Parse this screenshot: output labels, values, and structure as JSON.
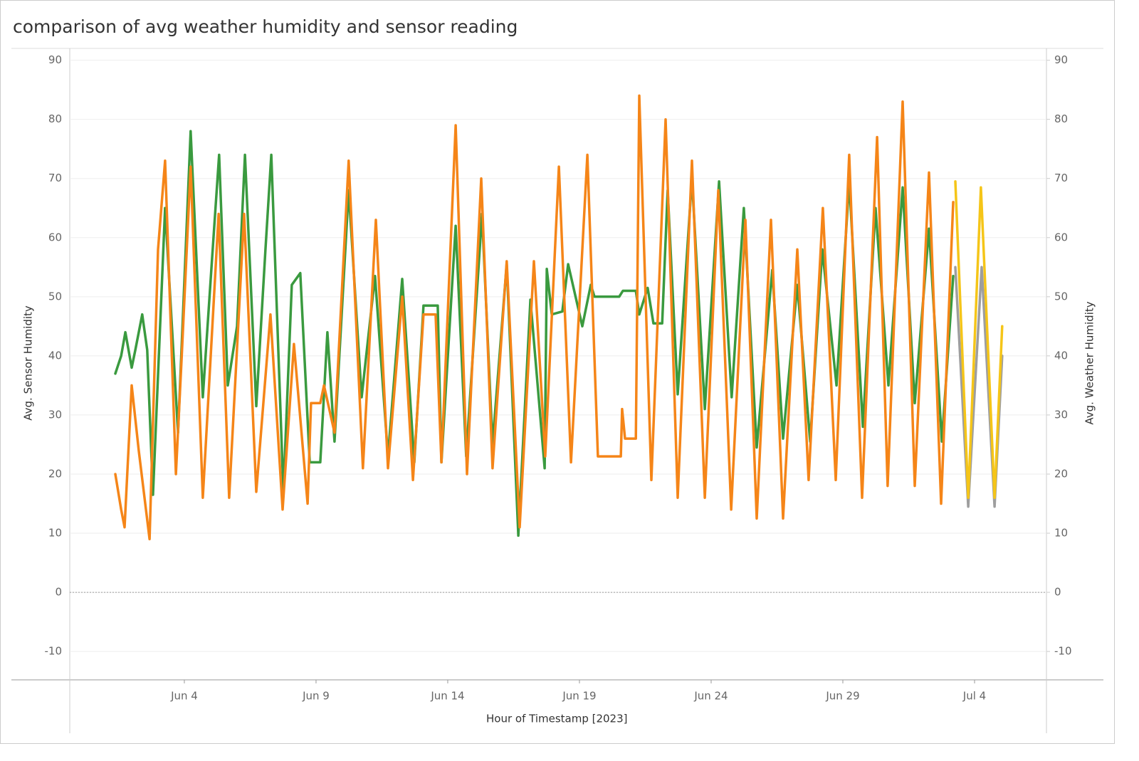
{
  "chart_data": {
    "type": "line",
    "title": "comparison of avg weather humidity and sensor reading",
    "x_label": "Hour of Timestamp [2023]",
    "y_label": "Avg. Sensor Humidity",
    "y2_label": "Avg. Weather Humidity",
    "xlim": [
      -0.35,
      36.73
    ],
    "xticks": [
      {
        "value": 4,
        "label": "Jun 4"
      },
      {
        "value": 9,
        "label": "Jun 9"
      },
      {
        "value": 14,
        "label": "Jun 14"
      },
      {
        "value": 19,
        "label": "Jun 19"
      },
      {
        "value": 24,
        "label": "Jun 24"
      },
      {
        "value": 29,
        "label": "Jun 29"
      },
      {
        "value": 34,
        "label": "Jul 4"
      }
    ],
    "ylim": [
      -14.8,
      92
    ],
    "yticks": [
      -10,
      0,
      10,
      20,
      30,
      40,
      50,
      60,
      70,
      80,
      90
    ],
    "y2lim": [
      -14.8,
      92
    ],
    "y2ticks": [
      -10,
      0,
      10,
      20,
      30,
      40,
      50,
      60,
      70,
      80,
      90
    ],
    "grid": true,
    "zero_line": true,
    "series": [
      {
        "color": "#3a9a3f",
        "axis": "y",
        "x": [
          1.38,
          1.6,
          1.76,
          2.0,
          2.14,
          2.4,
          2.59,
          2.81,
          3.27,
          3.76,
          4.24,
          4.7,
          5.03,
          5.32,
          5.65,
          6.0,
          6.3,
          6.73,
          7.08,
          7.3,
          7.76,
          8.08,
          8.4,
          8.76,
          9.16,
          9.43,
          9.7,
          10.24,
          10.73,
          11.24,
          11.73,
          12.27,
          12.73,
          13.08,
          13.62,
          13.76,
          14.3,
          14.7,
          15.3,
          15.7,
          16.24,
          16.68,
          17.14,
          17.68,
          17.76,
          17.95,
          18.35,
          18.57,
          19.11,
          19.43,
          19.57,
          20.51,
          20.65,
          21.14,
          21.27,
          21.59,
          21.81,
          22.14,
          22.35,
          22.73,
          23.27,
          23.76,
          24.3,
          24.78,
          25.24,
          25.73,
          26.32,
          26.73,
          27.27,
          27.76,
          28.22,
          28.76,
          29.24,
          29.76,
          30.24,
          30.73,
          31.27,
          31.73,
          32.27,
          32.76,
          33.19
        ],
        "values": [
          37,
          40,
          44,
          38,
          41,
          47,
          41,
          16.5,
          65,
          27,
          78,
          33,
          55,
          74,
          35,
          45,
          74,
          31.5,
          58,
          74,
          17,
          52,
          54,
          22,
          22,
          44,
          25.5,
          68,
          33,
          53.5,
          23,
          53,
          22,
          48.5,
          48.5,
          22,
          62,
          23,
          64,
          25,
          55.5,
          9.6,
          49.5,
          21,
          54.7,
          47,
          47.5,
          55.5,
          45,
          52,
          50,
          50,
          51,
          51,
          47,
          51.5,
          45.5,
          45.5,
          68,
          33.5,
          70,
          31,
          69.5,
          33,
          65,
          24.5,
          54.5,
          26,
          52,
          25.5,
          58,
          35,
          69.5,
          28,
          65,
          35,
          68.5,
          32,
          61.5,
          25.5,
          53.5
        ]
      },
      {
        "color": "#f58518",
        "axis": "y2",
        "x": [
          1.38,
          1.6,
          1.73,
          2.0,
          2.27,
          2.68,
          3.0,
          3.27,
          3.68,
          3.9,
          4.24,
          4.7,
          5.3,
          5.7,
          6.27,
          6.73,
          7.27,
          7.73,
          8.16,
          8.68,
          8.81,
          9.16,
          9.3,
          9.7,
          10.24,
          10.78,
          11.27,
          11.73,
          12.27,
          12.68,
          13.08,
          13.54,
          13.76,
          14.3,
          14.73,
          15.27,
          15.7,
          16.24,
          16.73,
          17.27,
          17.7,
          18.22,
          18.68,
          19.3,
          19.7,
          20.57,
          20.62,
          20.73,
          21.14,
          21.27,
          21.73,
          22.27,
          22.73,
          23.27,
          23.76,
          24.27,
          24.76,
          25.3,
          25.73,
          26.27,
          26.73,
          27.27,
          27.7,
          28.24,
          28.73,
          29.24,
          29.73,
          30.3,
          30.7,
          31.27,
          31.73,
          32.27,
          32.73,
          33.19
        ],
        "values": [
          20,
          14,
          11,
          35,
          24,
          9,
          58,
          73,
          20,
          40,
          72,
          16,
          64,
          16,
          64,
          17,
          47,
          14,
          42,
          15,
          32,
          32,
          35,
          27,
          73,
          21,
          63,
          21,
          50,
          19,
          47,
          47,
          22,
          79,
          20,
          70,
          21,
          56,
          11,
          56,
          23,
          72,
          22,
          74,
          23,
          23,
          31,
          26,
          26,
          84,
          19,
          80,
          16,
          73,
          16,
          68,
          14,
          63,
          12.5,
          63,
          12.5,
          58,
          19,
          65,
          19,
          74,
          16,
          77,
          18,
          83,
          18,
          71,
          15,
          66
        ]
      },
      {
        "color": "#9e9e9e",
        "axis": "y",
        "x": [
          33.27,
          33.76,
          34.27,
          34.76,
          35.05
        ],
        "values": [
          55,
          14.5,
          55,
          14.5,
          40
        ]
      },
      {
        "color": "#f5c518",
        "axis": "y2",
        "x": [
          33.27,
          33.76,
          34.24,
          34.76,
          35.05
        ],
        "values": [
          69.5,
          16,
          68.5,
          16,
          45
        ]
      }
    ]
  }
}
